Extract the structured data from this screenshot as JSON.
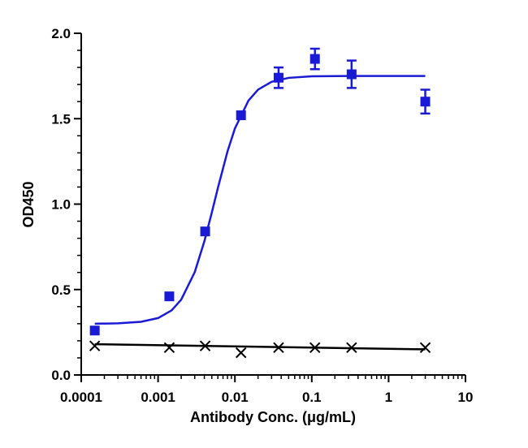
{
  "chart_data": {
    "type": "scatter",
    "x_label": "Antibody Conc. (μg/mL)",
    "y_label": "OD450",
    "xlog": true,
    "xlim": [
      0.0001,
      10
    ],
    "xticks": [
      0.0001,
      0.001,
      0.01,
      0.1,
      1,
      10
    ],
    "ylim": [
      0,
      2
    ],
    "yticks": [
      {
        "value": 0,
        "label": "0.0"
      },
      0.5,
      {
        "value": 1,
        "label": "1.0"
      },
      1.5,
      {
        "value": 2,
        "label": "2.0"
      }
    ],
    "series": [
      {
        "mode": "markers",
        "marker": "square",
        "color": "#1a1ad6",
        "x": [
          0.00015,
          0.0014,
          0.0041,
          0.012,
          0.037,
          0.11,
          0.33,
          3
        ],
        "values": [
          0.26,
          0.46,
          0.84,
          1.52,
          1.74,
          1.85,
          1.76,
          1.6
        ],
        "errors": [
          null,
          null,
          null,
          null,
          0.06,
          0.06,
          0.08,
          0.07
        ]
      },
      {
        "mode": "markers",
        "marker": "x",
        "color": "#000000",
        "x": [
          0.00015,
          0.0014,
          0.0041,
          0.012,
          0.037,
          0.11,
          0.33,
          3
        ],
        "values": [
          0.17,
          0.16,
          0.17,
          0.13,
          0.16,
          0.16,
          0.16,
          0.16
        ]
      },
      {
        "mode": "line",
        "color": "#1a1ad6",
        "x": [
          0.00015,
          0.0003,
          0.0006,
          0.001,
          0.0015,
          0.002,
          0.003,
          0.004,
          0.005,
          0.006,
          0.008,
          0.01,
          0.015,
          0.02,
          0.03,
          0.05,
          0.1,
          0.3,
          1,
          3
        ],
        "values": [
          0.3,
          0.302,
          0.311,
          0.333,
          0.378,
          0.441,
          0.602,
          0.782,
          0.95,
          1.094,
          1.308,
          1.443,
          1.606,
          1.67,
          1.716,
          1.739,
          1.748,
          1.75,
          1.75,
          1.75
        ]
      },
      {
        "mode": "line",
        "color": "#000000",
        "x": [
          0.00015,
          3
        ],
        "values": [
          0.18,
          0.15
        ]
      }
    ]
  }
}
